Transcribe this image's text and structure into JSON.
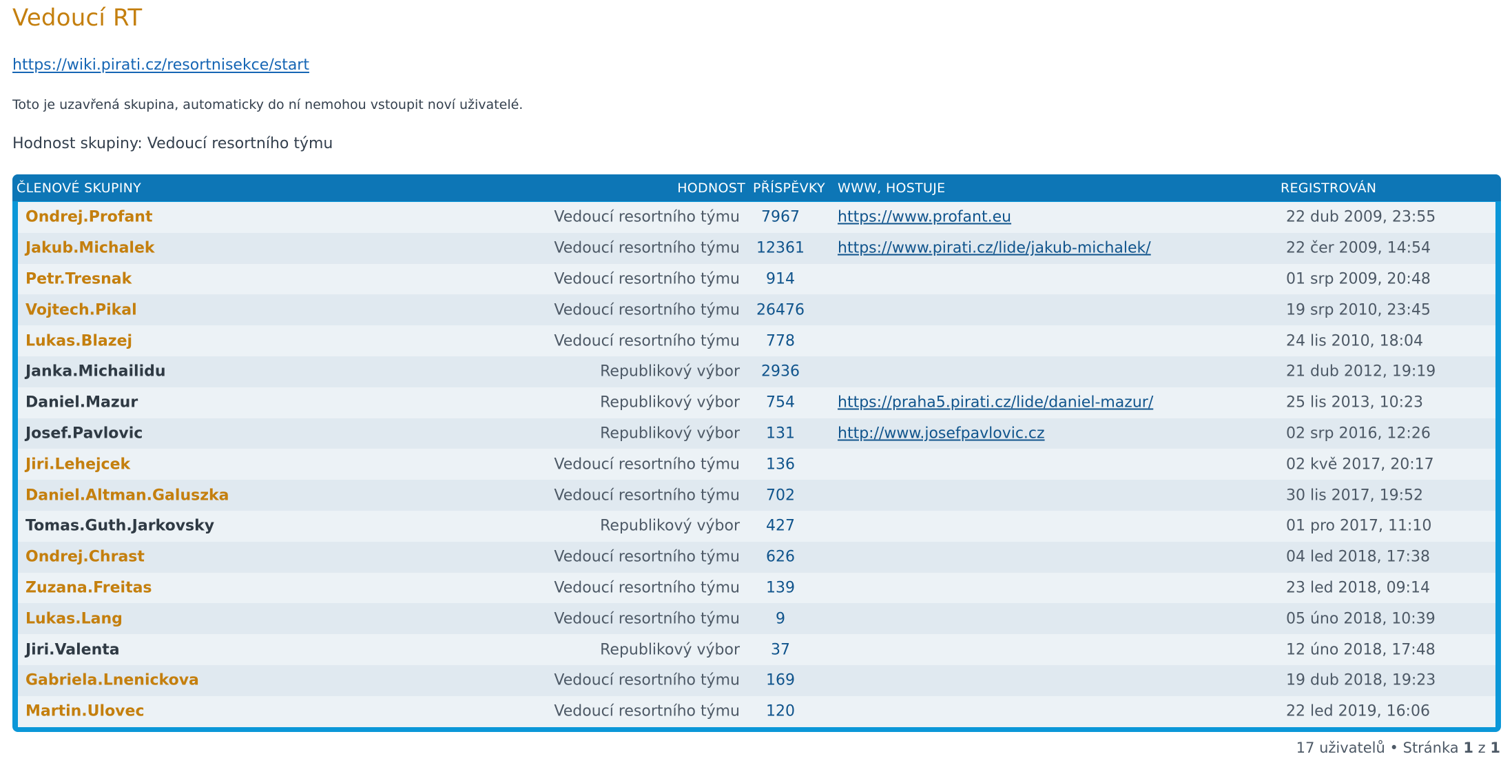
{
  "group": {
    "title": "Vedoucí RT",
    "link": "https://wiki.pirati.cz/resortnisekce/start",
    "closed_note": "Toto je uzavřená skupina, automaticky do ní nemohou vstoupit noví uživatelé.",
    "rank_line": "Hodnost skupiny: Vedoucí resortního týmu"
  },
  "colors": {
    "leader_name": "#c47f0e",
    "board_name": "#2f3a44",
    "header_bg": "#0d76b6",
    "panel_border": "#0b97d8",
    "link": "#1565b4"
  },
  "table": {
    "headers": {
      "members": "ČLENOVÉ SKUPINY",
      "rank": "HODNOST",
      "posts": "PŘÍSPĚVKY",
      "www": "WWW, HOSTUJE",
      "registered": "REGISTROVÁN"
    },
    "rows": [
      {
        "name": "Ondrej.Profant",
        "role": "leader",
        "rank": "Vedoucí resortního týmu",
        "posts": "7967",
        "www": "https://www.profant.eu",
        "registered": "22 dub 2009, 23:55"
      },
      {
        "name": "Jakub.Michalek",
        "role": "leader",
        "rank": "Vedoucí resortního týmu",
        "posts": "12361",
        "www": "https://www.pirati.cz/lide/jakub-michalek/",
        "registered": "22 čer 2009, 14:54"
      },
      {
        "name": "Petr.Tresnak",
        "role": "leader",
        "rank": "Vedoucí resortního týmu",
        "posts": "914",
        "www": "",
        "registered": "01 srp 2009, 20:48"
      },
      {
        "name": "Vojtech.Pikal",
        "role": "leader",
        "rank": "Vedoucí resortního týmu",
        "posts": "26476",
        "www": "",
        "registered": "19 srp 2010, 23:45"
      },
      {
        "name": "Lukas.Blazej",
        "role": "leader",
        "rank": "Vedoucí resortního týmu",
        "posts": "778",
        "www": "",
        "registered": "24 lis 2010, 18:04"
      },
      {
        "name": "Janka.Michailidu",
        "role": "board",
        "rank": "Republikový výbor",
        "posts": "2936",
        "www": "",
        "registered": "21 dub 2012, 19:19"
      },
      {
        "name": "Daniel.Mazur",
        "role": "board",
        "rank": "Republikový výbor",
        "posts": "754",
        "www": "https://praha5.pirati.cz/lide/daniel-mazur/",
        "registered": "25 lis 2013, 10:23"
      },
      {
        "name": "Josef.Pavlovic",
        "role": "board",
        "rank": "Republikový výbor",
        "posts": "131",
        "www": "http://www.josefpavlovic.cz",
        "registered": "02 srp 2016, 12:26"
      },
      {
        "name": "Jiri.Lehejcek",
        "role": "leader",
        "rank": "Vedoucí resortního týmu",
        "posts": "136",
        "www": "",
        "registered": "02 kvě 2017, 20:17"
      },
      {
        "name": "Daniel.Altman.Galuszka",
        "role": "leader",
        "rank": "Vedoucí resortního týmu",
        "posts": "702",
        "www": "",
        "registered": "30 lis 2017, 19:52"
      },
      {
        "name": "Tomas.Guth.Jarkovsky",
        "role": "board",
        "rank": "Republikový výbor",
        "posts": "427",
        "www": "",
        "registered": "01 pro 2017, 11:10"
      },
      {
        "name": "Ondrej.Chrast",
        "role": "leader",
        "rank": "Vedoucí resortního týmu",
        "posts": "626",
        "www": "",
        "registered": "04 led 2018, 17:38"
      },
      {
        "name": "Zuzana.Freitas",
        "role": "leader",
        "rank": "Vedoucí resortního týmu",
        "posts": "139",
        "www": "",
        "registered": "23 led 2018, 09:14"
      },
      {
        "name": "Lukas.Lang",
        "role": "leader",
        "rank": "Vedoucí resortního týmu",
        "posts": "9",
        "www": "",
        "registered": "05 úno 2018, 10:39"
      },
      {
        "name": "Jiri.Valenta",
        "role": "board",
        "rank": "Republikový výbor",
        "posts": "37",
        "www": "",
        "registered": "12 úno 2018, 17:48"
      },
      {
        "name": "Gabriela.Lnenickova",
        "role": "leader",
        "rank": "Vedoucí resortního týmu",
        "posts": "169",
        "www": "",
        "registered": "19 dub 2018, 19:23"
      },
      {
        "name": "Martin.Ulovec",
        "role": "leader",
        "rank": "Vedoucí resortního týmu",
        "posts": "120",
        "www": "",
        "registered": "22 led 2019, 16:06"
      }
    ]
  },
  "pagination": {
    "user_count": "17 uživatelů",
    "separator": "•",
    "page_word": "Stránka",
    "current_page": "1",
    "of_word": "z",
    "total_pages": "1"
  }
}
